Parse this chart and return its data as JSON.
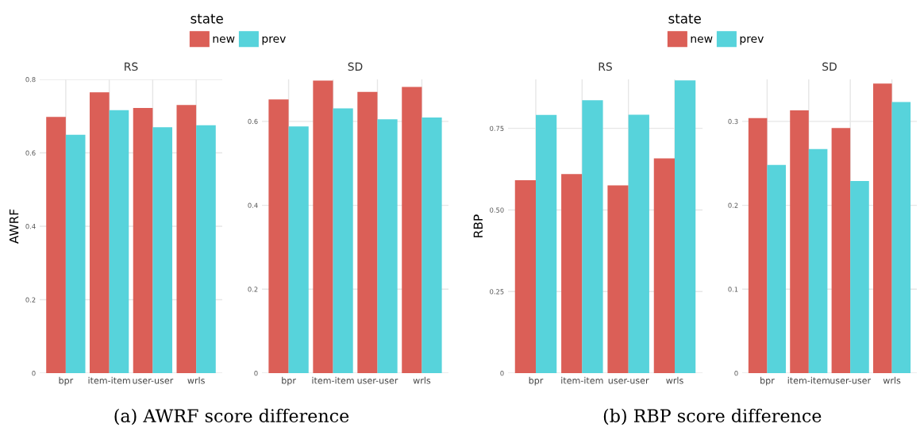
{
  "chart_data": [
    {
      "type": "bar",
      "title": "RS",
      "ylabel": "AWRF",
      "legend_title": "state",
      "legend": "top",
      "grid": true,
      "categories": [
        "bpr",
        "item-item",
        "user-user",
        "wrls"
      ],
      "ylim": [
        0,
        0.8
      ],
      "yticks": [
        0,
        0.2,
        0.4,
        0.6,
        0.8
      ],
      "annotations": [
        "(a) AWRF score difference"
      ],
      "series": [
        {
          "name": "new",
          "color": "#db5f57",
          "values": [
            0.698,
            0.765,
            0.722,
            0.73
          ]
        },
        {
          "name": "prev",
          "color": "#57d3db",
          "values": [
            0.649,
            0.716,
            0.67,
            0.675
          ]
        }
      ]
    },
    {
      "type": "bar",
      "title": "SD",
      "grid": true,
      "categories": [
        "bpr",
        "item-item",
        "user-user",
        "wrls"
      ],
      "ylim": [
        0,
        0.7
      ],
      "yticks": [
        0,
        0.2,
        0.4,
        0.6
      ],
      "series": [
        {
          "color": "#db5f57",
          "values": [
            0.652,
            0.697,
            0.67,
            0.682
          ]
        },
        {
          "color": "#57d3db",
          "values": [
            0.588,
            0.631,
            0.605,
            0.609
          ]
        }
      ]
    },
    {
      "type": "bar",
      "title": "RS",
      "ylabel": "RBP",
      "legend_title": "state",
      "legend": "top",
      "grid": true,
      "categories": [
        "bpr",
        "item-item",
        "user-user",
        "wrls"
      ],
      "ylim": [
        0,
        0.9
      ],
      "yticks": [
        0,
        0.25,
        {
          "value": 0.5,
          "label": "0.50"
        },
        0.75
      ],
      "annotations": [
        "(b) RBP score difference"
      ],
      "series": [
        {
          "name": "new",
          "color": "#db5f57",
          "values": [
            0.591,
            0.61,
            0.575,
            0.658
          ]
        },
        {
          "name": "prev",
          "color": "#57d3db",
          "values": [
            0.791,
            0.836,
            0.792,
            0.897
          ]
        }
      ]
    },
    {
      "type": "bar",
      "title": "SD",
      "grid": true,
      "categories": [
        "bpr",
        "item-item",
        "user-user",
        "wrls"
      ],
      "ylim": [
        0,
        0.35
      ],
      "yticks": [
        0,
        0.1,
        0.2,
        0.3
      ],
      "series": [
        {
          "color": "#db5f57",
          "values": [
            0.304,
            0.313,
            0.292,
            0.345
          ]
        },
        {
          "color": "#57d3db",
          "values": [
            0.248,
            0.267,
            0.229,
            0.323
          ]
        }
      ]
    }
  ]
}
